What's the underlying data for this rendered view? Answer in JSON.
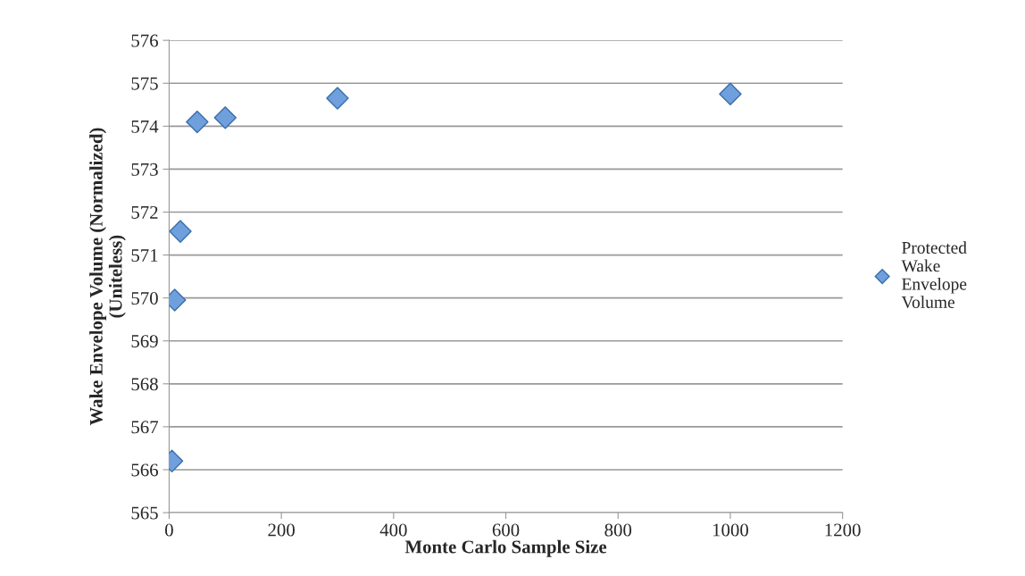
{
  "chart_data": {
    "type": "scatter",
    "xlabel": "Monte Carlo Sample Size",
    "ylabel": "Wake Envelope Volume (Normalized)\n(Uniteless)",
    "x": [
      5,
      10,
      20,
      50,
      100,
      300,
      1000
    ],
    "series": [
      {
        "name": "Protected\nWake\nEnvelope\nVolume",
        "color": "#6f9fdc",
        "values": [
          566.2,
          569.95,
          571.55,
          574.1,
          574.2,
          574.65,
          574.75
        ]
      }
    ],
    "xlim": [
      0,
      1200
    ],
    "xticks": [
      0,
      200,
      400,
      600,
      800,
      1000,
      1200
    ],
    "ylim": [
      565,
      576
    ],
    "yticks": [
      565,
      566,
      567,
      568,
      569,
      570,
      571,
      572,
      573,
      574,
      575,
      576
    ],
    "grid": "y",
    "legend": "right",
    "marker": "diamond"
  }
}
